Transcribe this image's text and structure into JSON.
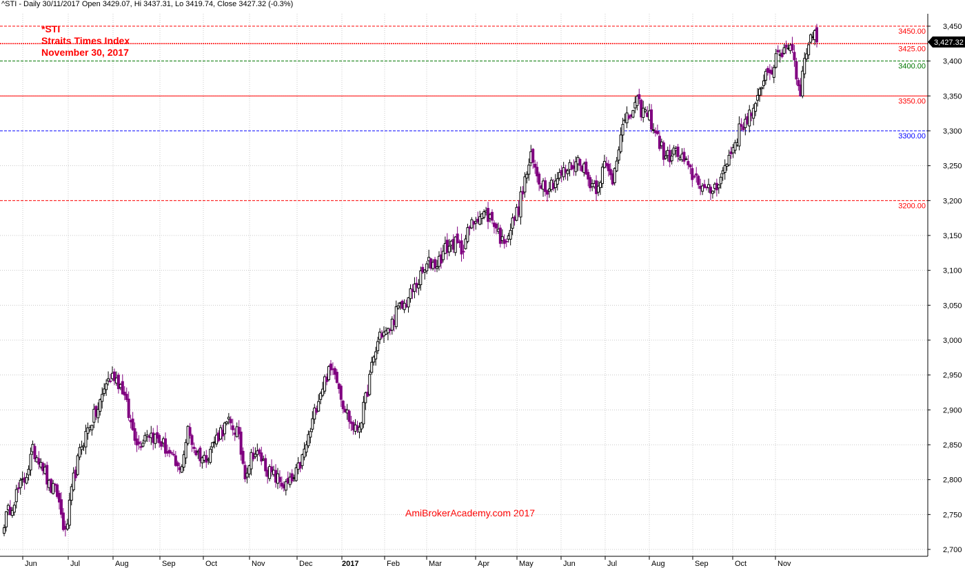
{
  "header": {
    "info": "^STI - Daily 30/11/2017 Open 3429.07, Hi 3437.31, Lo 3419.74, Close 3427.32 (-0.3%)"
  },
  "title": {
    "line1": "*STI",
    "line2": "Straits Times Index",
    "line3": "November 30, 2017"
  },
  "watermark": "AmiBrokerAcademy.com  2017",
  "colors": {
    "up_candle": "#000000",
    "down_candle": "#800080",
    "grid": "#c8c8c8",
    "red_line": "#ff0000",
    "green_line": "#007700",
    "blue_line": "#0000ff",
    "last_price_bg": "#000000"
  },
  "chart_data": {
    "type": "candlestick",
    "x_labels": [
      "Jun",
      "Jul",
      "Aug",
      "Sep",
      "Oct",
      "Nov",
      "Dec",
      "2017",
      "Feb",
      "Mar",
      "Apr",
      "May",
      "Jun",
      "Jul",
      "Aug",
      "Sep",
      "Oct",
      "Nov"
    ],
    "ylim": [
      2690,
      3460
    ],
    "y_ticks": [
      "2,700",
      "2,750",
      "2,800",
      "2,850",
      "2,900",
      "2,950",
      "3,000",
      "3,050",
      "3,100",
      "3,150",
      "3,200",
      "3,250",
      "3,300",
      "3,350",
      "3,400",
      "3,450"
    ],
    "last_price": "3,427.32",
    "last_value": 3427.32,
    "horizontal_lines": [
      {
        "value": 3450,
        "label": "3450.00",
        "color": "#ff0000",
        "style": "dashed"
      },
      {
        "value": 3425,
        "label": "3425.00",
        "color": "#ff0000",
        "style": "dotted"
      },
      {
        "value": 3400,
        "label": "3400.00",
        "color": "#007700",
        "style": "dashed"
      },
      {
        "value": 3350,
        "label": "3350.00",
        "color": "#ff0000",
        "style": "solid"
      },
      {
        "value": 3300,
        "label": "3300.00",
        "color": "#0000ff",
        "style": "dashed"
      },
      {
        "value": 3200,
        "label": "3200.00",
        "color": "#ff0000",
        "style": "dashed"
      }
    ],
    "anchors": [
      [
        0,
        2740
      ],
      [
        6,
        2780
      ],
      [
        10,
        2800
      ],
      [
        14,
        2840
      ],
      [
        18,
        2830
      ],
      [
        22,
        2790
      ],
      [
        26,
        2780
      ],
      [
        30,
        2720
      ],
      [
        34,
        2800
      ],
      [
        38,
        2850
      ],
      [
        42,
        2880
      ],
      [
        46,
        2900
      ],
      [
        50,
        2940
      ],
      [
        54,
        2950
      ],
      [
        58,
        2930
      ],
      [
        62,
        2880
      ],
      [
        66,
        2850
      ],
      [
        70,
        2870
      ],
      [
        74,
        2860
      ],
      [
        78,
        2850
      ],
      [
        82,
        2830
      ],
      [
        86,
        2810
      ],
      [
        90,
        2870
      ],
      [
        94,
        2840
      ],
      [
        98,
        2830
      ],
      [
        102,
        2850
      ],
      [
        106,
        2870
      ],
      [
        110,
        2880
      ],
      [
        114,
        2870
      ],
      [
        118,
        2810
      ],
      [
        122,
        2840
      ],
      [
        126,
        2830
      ],
      [
        130,
        2810
      ],
      [
        134,
        2800
      ],
      [
        138,
        2790
      ],
      [
        142,
        2800
      ],
      [
        146,
        2830
      ],
      [
        150,
        2870
      ],
      [
        154,
        2920
      ],
      [
        158,
        2950
      ],
      [
        162,
        2960
      ],
      [
        166,
        2910
      ],
      [
        170,
        2880
      ],
      [
        172,
        2870
      ],
      [
        174,
        2880
      ],
      [
        176,
        2900
      ],
      [
        180,
        2960
      ],
      [
        184,
        3010
      ],
      [
        188,
        3010
      ],
      [
        192,
        3040
      ],
      [
        196,
        3050
      ],
      [
        200,
        3070
      ],
      [
        204,
        3090
      ],
      [
        208,
        3110
      ],
      [
        212,
        3110
      ],
      [
        216,
        3130
      ],
      [
        220,
        3140
      ],
      [
        224,
        3130
      ],
      [
        228,
        3160
      ],
      [
        232,
        3180
      ],
      [
        236,
        3180
      ],
      [
        240,
        3170
      ],
      [
        244,
        3140
      ],
      [
        248,
        3160
      ],
      [
        252,
        3190
      ],
      [
        256,
        3240
      ],
      [
        258,
        3260
      ],
      [
        262,
        3230
      ],
      [
        266,
        3220
      ],
      [
        270,
        3230
      ],
      [
        274,
        3240
      ],
      [
        278,
        3250
      ],
      [
        282,
        3260
      ],
      [
        286,
        3230
      ],
      [
        290,
        3220
      ],
      [
        294,
        3250
      ],
      [
        298,
        3230
      ],
      [
        302,
        3300
      ],
      [
        306,
        3320
      ],
      [
        310,
        3340
      ],
      [
        312,
        3330
      ],
      [
        316,
        3320
      ],
      [
        320,
        3290
      ],
      [
        324,
        3260
      ],
      [
        328,
        3270
      ],
      [
        332,
        3260
      ],
      [
        336,
        3240
      ],
      [
        340,
        3230
      ],
      [
        344,
        3210
      ],
      [
        348,
        3220
      ],
      [
        352,
        3240
      ],
      [
        356,
        3270
      ],
      [
        360,
        3300
      ],
      [
        364,
        3320
      ],
      [
        368,
        3330
      ],
      [
        372,
        3380
      ],
      [
        376,
        3390
      ],
      [
        380,
        3410
      ],
      [
        384,
        3425
      ],
      [
        386,
        3420
      ],
      [
        388,
        3380
      ],
      [
        390,
        3360
      ],
      [
        392,
        3400
      ],
      [
        394,
        3430
      ],
      [
        396,
        3440
      ],
      [
        398,
        3427
      ]
    ]
  }
}
